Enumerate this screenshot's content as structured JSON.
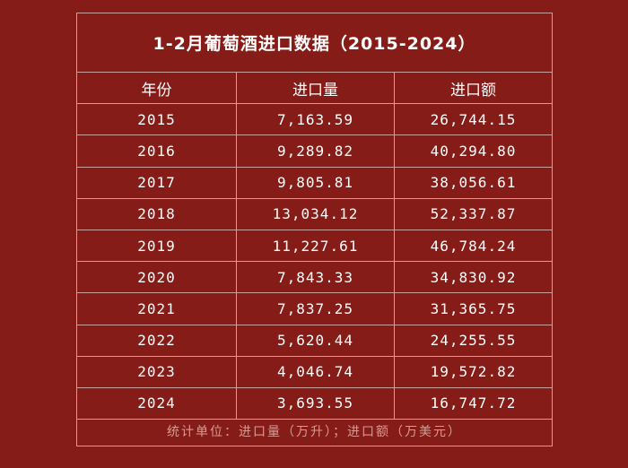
{
  "chart_data": {
    "type": "table",
    "title": "1-2月葡萄酒进口数据（2015-2024）",
    "columns": [
      "年份",
      "进口量",
      "进口额"
    ],
    "rows": [
      [
        "2015",
        "7,163.59",
        "26,744.15"
      ],
      [
        "2016",
        "9,289.82",
        "40,294.80"
      ],
      [
        "2017",
        "9,805.81",
        "38,056.61"
      ],
      [
        "2018",
        "13,034.12",
        "52,337.87"
      ],
      [
        "2019",
        "11,227.61",
        "46,784.24"
      ],
      [
        "2020",
        "7,843.33",
        "34,830.92"
      ],
      [
        "2021",
        "7,837.25",
        "31,365.75"
      ],
      [
        "2022",
        "5,620.44",
        "24,255.55"
      ],
      [
        "2023",
        "4,046.74",
        "19,572.82"
      ],
      [
        "2024",
        "3,693.55",
        "16,747.72"
      ]
    ],
    "footnote": "统计单位：进口量（万升）；进口额（万美元）"
  },
  "colors": {
    "background": "#861c17",
    "border": "#c9a29e",
    "text": "#ffffff",
    "footnote": "#d99a94"
  }
}
